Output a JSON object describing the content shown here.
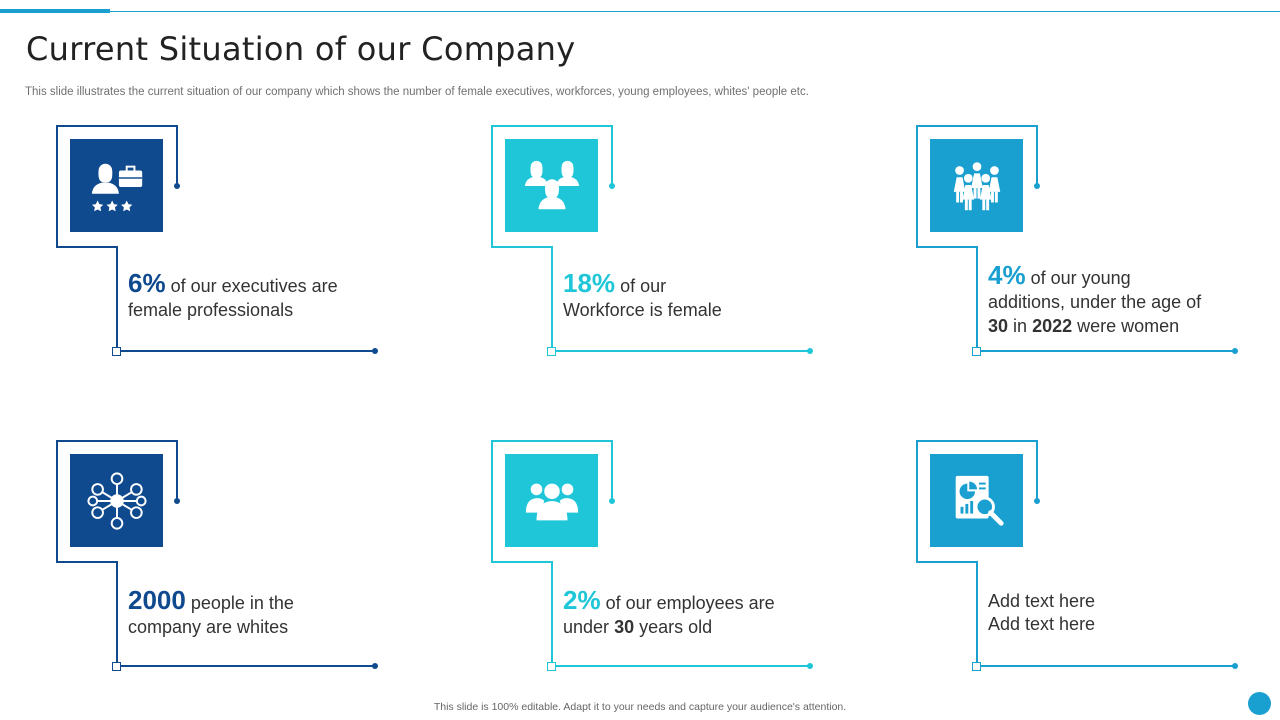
{
  "slide": {
    "title": "Current Situation of our Company",
    "subtitle": "This slide illustrates the current situation of our company which shows the number of female executives, workforces, young employees, whites' people etc.",
    "footer": "This slide is 100% editable. Adapt it to your needs and capture your audience's attention."
  },
  "colors": {
    "navy": "#0f4a8f",
    "cyan": "#1ec6d8",
    "blue": "#1a9fd1"
  },
  "cards": [
    {
      "icon": "female-executive-icon",
      "value": "6%",
      "text_1": "of our executives are",
      "text_2": "female professionals"
    },
    {
      "icon": "female-group-icon",
      "value": "18%",
      "text_1": "of our",
      "text_2": "Workforce is female"
    },
    {
      "icon": "women-team-icon",
      "value": "4%",
      "text_1": "of our young",
      "text_2": "additions, under the age of",
      "num_age": "30",
      "text_3": "in",
      "num_year": "2022",
      "text_4": "were women"
    },
    {
      "icon": "network-people-icon",
      "value": "2000",
      "text_1": "people in the",
      "text_2": "company are whites"
    },
    {
      "icon": "group-people-icon",
      "value": "2%",
      "text_1": "of our employees are",
      "text_2": "under",
      "num_age": "30",
      "text_3": "years old"
    },
    {
      "icon": "report-analysis-icon",
      "text_1": "Add text here",
      "text_2": "Add text here"
    }
  ]
}
